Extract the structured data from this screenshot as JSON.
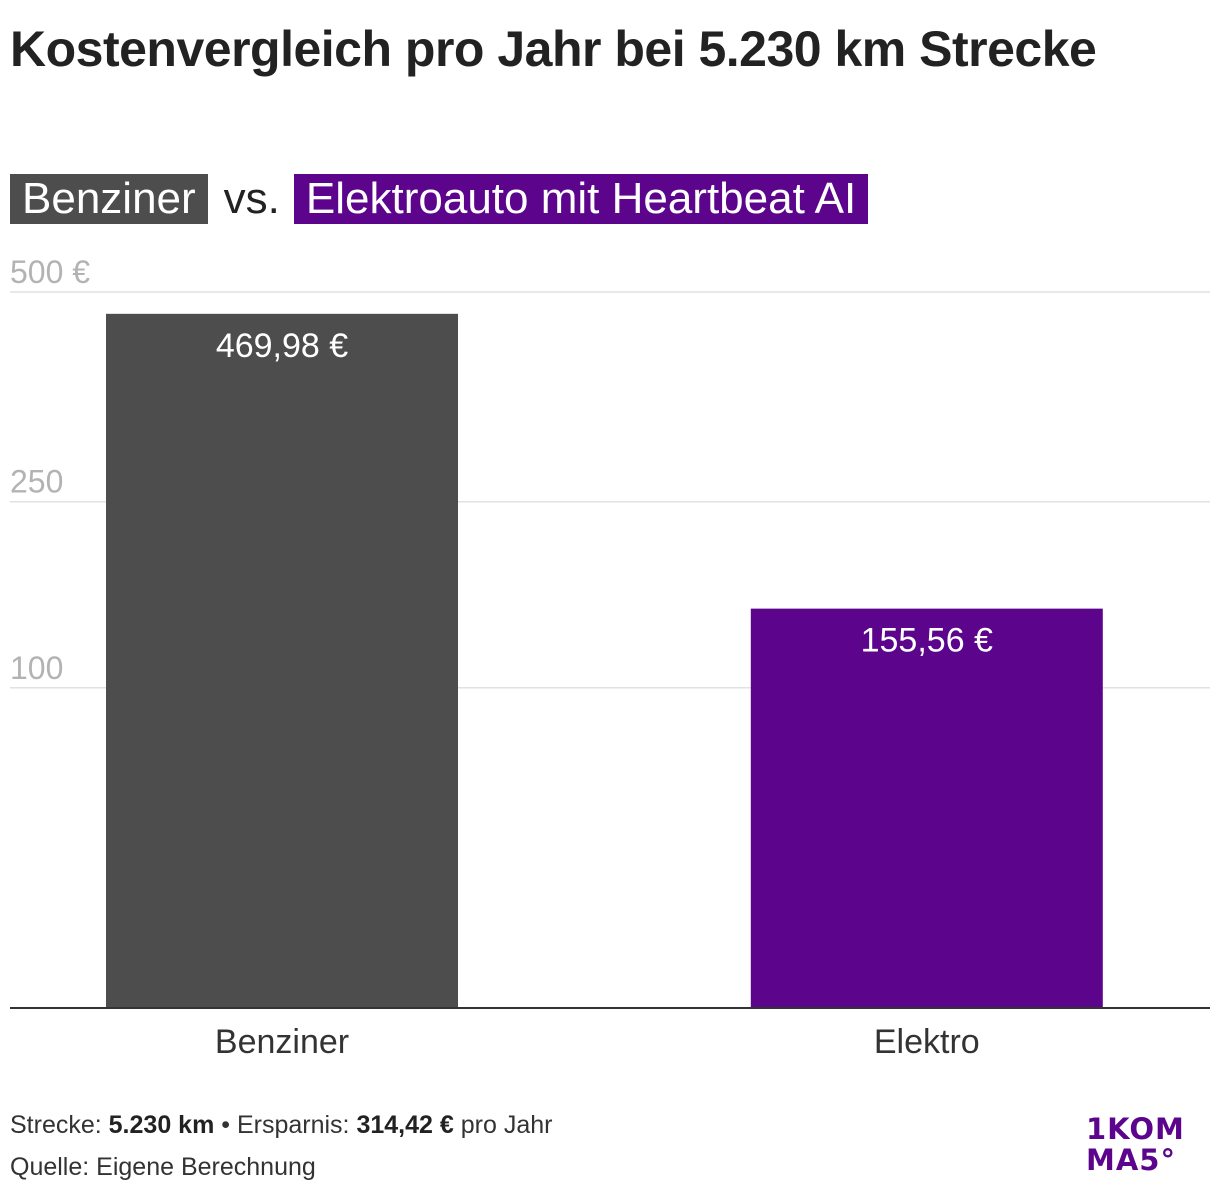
{
  "title": "Kostenvergleich pro Jahr bei 5.230 km Strecke",
  "subtitle": {
    "left_label": "Benziner",
    "vs_label": "vs.",
    "right_label": "Elektroauto mit Heartbeat AI"
  },
  "chart_data": {
    "type": "bar",
    "categories": [
      "Benziner",
      "Elektro"
    ],
    "values": [
      469.98,
      155.56
    ],
    "data_labels": [
      "469,98 €",
      "155,56 €"
    ],
    "bar_colors": [
      "#4d4d4d",
      "#5c058c"
    ],
    "y_ticks": [
      {
        "value": 500,
        "label": "500 €"
      },
      {
        "value": 250,
        "label": "250"
      },
      {
        "value": 100,
        "label": "100"
      }
    ],
    "ylim": [
      0,
      500
    ],
    "y_scale": "sqrt",
    "grid": true,
    "title": "Kostenvergleich pro Jahr bei 5.230 km Strecke",
    "xlabel": "",
    "ylabel": ""
  },
  "footer": {
    "line1_distance_label": "Strecke:",
    "line1_distance_value": "5.230 km",
    "line1_separator": "•",
    "line1_savings_label": "Ersparnis:",
    "line1_savings_value": "314,42 €",
    "line1_suffix": "pro Jahr",
    "line2": "Quelle: Eigene Berechnung"
  },
  "logo": {
    "line1": "1KOM",
    "line2": "MA5°"
  },
  "colors": {
    "benziner": "#4d4d4d",
    "elektro": "#5c058c",
    "gridline": "#e2e2e2",
    "tick_label": "#b3b3b3",
    "axis": "#333333"
  }
}
